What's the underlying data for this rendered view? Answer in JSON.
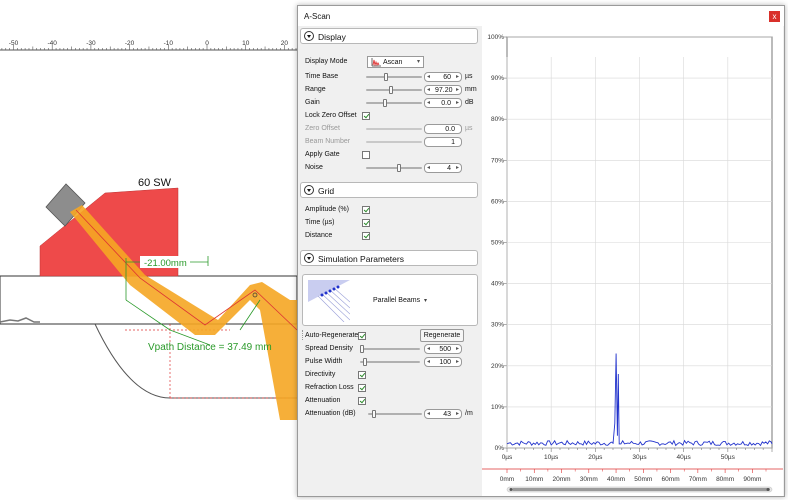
{
  "ruler": {
    "labels": [
      "-50",
      "-40",
      "-30",
      "-20",
      "-10",
      "0",
      "10",
      "20"
    ]
  },
  "scene": {
    "wedge_label": "60 SW",
    "dimension_label": "-21.00mm",
    "vpath_label": "Vpath Distance = 37.49 mm"
  },
  "dialog": {
    "title": "A-Scan",
    "close_glyph": "x",
    "display_section": "Display",
    "display_mode": {
      "label": "Display Mode",
      "value": "Ascan"
    },
    "time_base": {
      "label": "Time Base",
      "value": "60",
      "unit": "µs",
      "level": 0.35
    },
    "range": {
      "label": "Range",
      "value": "97.20",
      "unit": "mm",
      "level": 0.45
    },
    "gain": {
      "label": "Gain",
      "value": "0.0",
      "unit": "dB",
      "level": 0.33
    },
    "lock_zero_offset": {
      "label": "Lock Zero Offset",
      "checked": true
    },
    "zero_offset": {
      "label": "Zero Offset",
      "value": "0.0",
      "unit": "µs"
    },
    "beam_number": {
      "label": "Beam Number",
      "value": "1"
    },
    "apply_gate": {
      "label": "Apply Gate",
      "checked": false
    },
    "noise": {
      "label": "Noise",
      "value": "4",
      "level": 0.6
    },
    "grid_section": "Grid",
    "grid_amplitude": {
      "label": "Amplitude (%)",
      "checked": true
    },
    "grid_time": {
      "label": "Time (µs)",
      "checked": true
    },
    "grid_distance": {
      "label": "Distance",
      "checked": true
    },
    "sim_section": "Simulation Parameters",
    "beam_type": "Parallel Beams",
    "auto_regenerate": {
      "label": "Auto-Regenerate",
      "checked": true
    },
    "regenerate_button": "Regenerate",
    "spread_density": {
      "label": "Spread Density",
      "value": "500",
      "level": 0.0
    },
    "pulse_width": {
      "label": "Pulse Width",
      "value": "100",
      "level": 0.05
    },
    "directivity": {
      "label": "Directivity",
      "checked": true
    },
    "refraction_loss": {
      "label": "Refraction Loss",
      "checked": true
    },
    "attenuation": {
      "label": "Attenuation",
      "checked": true
    },
    "attenuation_db": {
      "label": "Attenuation (dB)",
      "value": "43",
      "unit": "/m",
      "level": 0.08
    }
  },
  "colors": {
    "wedge": "#ee4a4a",
    "beam": "#f5a623",
    "signal": "#2233cc",
    "dimension": "#2a9a2a",
    "close": "#d9302a"
  },
  "chart_data": {
    "type": "line",
    "y_ticks": [
      "0%",
      "10%",
      "20%",
      "30%",
      "40%",
      "50%",
      "60%",
      "70%",
      "80%",
      "90%",
      "100%"
    ],
    "x_time_ticks": [
      "0µs",
      "10µs",
      "20µs",
      "30µs",
      "40µs",
      "50µs"
    ],
    "x_distance_ticks": [
      "0mm",
      "10mm",
      "20mm",
      "30mm",
      "40mm",
      "50mm",
      "60mm",
      "70mm",
      "80mm",
      "90mm"
    ],
    "ylim": [
      0,
      100
    ],
    "xlim_us": [
      0,
      60
    ],
    "grid": true,
    "series": [
      {
        "x": [
          0,
          20,
          24,
          24.4,
          24.7,
          25.0,
          25.2,
          25.4,
          25.8,
          60
        ],
        "y": [
          1,
          1,
          1,
          6,
          23,
          3,
          18,
          1,
          1,
          1
        ]
      }
    ]
  }
}
